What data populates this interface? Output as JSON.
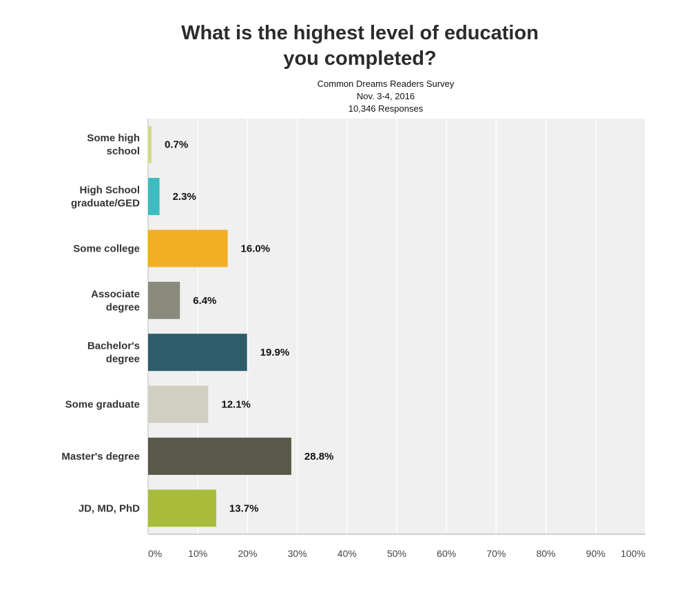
{
  "chart_data": {
    "type": "bar",
    "orientation": "horizontal",
    "title_lines": [
      "What is the highest level of education",
      "you completed?"
    ],
    "subtitle_lines": [
      "Common Dreams Readers Survey",
      "Nov. 3-4, 2016",
      "10,346 Responses"
    ],
    "categories": [
      [
        "Some high",
        "school"
      ],
      [
        "High School",
        "graduate/GED"
      ],
      [
        "Some college"
      ],
      [
        "Associate",
        "degree"
      ],
      [
        "Bachelor's",
        "degree"
      ],
      [
        "Some graduate"
      ],
      [
        "Master's degree"
      ],
      [
        "JD, MD, PhD"
      ]
    ],
    "values": [
      0.7,
      2.3,
      16.0,
      6.4,
      19.9,
      12.1,
      28.8,
      13.7
    ],
    "value_labels": [
      "0.7%",
      "2.3%",
      "16.0%",
      "6.4%",
      "19.9%",
      "12.1%",
      "28.8%",
      "13.7%"
    ],
    "colors": [
      "#d4d98a",
      "#3dbcc0",
      "#f2ae24",
      "#8a8a7c",
      "#2e5c6a",
      "#d0cfc2",
      "#5a5848",
      "#a9bc3a"
    ],
    "xlim": [
      0,
      100
    ],
    "xticks": [
      0,
      10,
      20,
      30,
      40,
      50,
      60,
      70,
      80,
      90,
      100
    ],
    "xtick_labels": [
      "0%",
      "10%",
      "20%",
      "30%",
      "40%",
      "50%",
      "60%",
      "70%",
      "80%",
      "90%",
      "100%"
    ],
    "grid": true,
    "background": "#f0f0f0",
    "legend": "none"
  }
}
